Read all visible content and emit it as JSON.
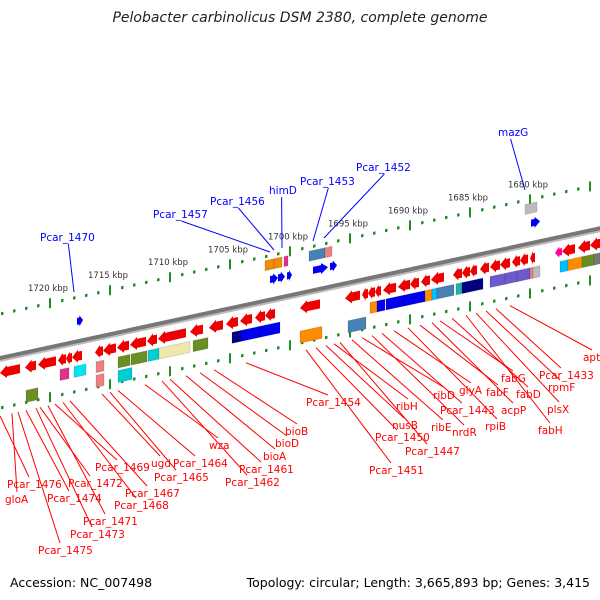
{
  "title": "Pelobacter carbinolicus DSM 2380, complete genome",
  "footer": {
    "accession": "Accession: NC_007498",
    "summary": "Topology: circular; Length: 3,665,893 bp; Genes: 3,415"
  },
  "colors": {
    "backbone": "#777777",
    "ticks": "#228b22",
    "forward_label": "#0000ff",
    "reverse_label": "#ff0000",
    "arrow_forward": "#0000ee",
    "arrow_reverse": "#ee0000"
  },
  "kbp_labels": [
    "1720 kbp",
    "1715 kbp",
    "1710 kbp",
    "1705 kbp",
    "1700 kbp",
    "1695 kbp",
    "1690 kbp",
    "1685 kbp",
    "1680 kbp"
  ],
  "forward_genes": [
    "Pcar_1470",
    "Pcar_1457",
    "Pcar_1456",
    "himD",
    "Pcar_1453",
    "Pcar_1452",
    "mazG"
  ],
  "reverse_genes": [
    "Pcar_1476",
    "gloA",
    "Pcar_1474",
    "Pcar_1472",
    "Pcar_1469",
    "Pcar_1467",
    "Pcar_1468",
    "Pcar_1471",
    "Pcar_1473",
    "Pcar_1475",
    "ugd",
    "Pcar_1464",
    "Pcar_1465",
    "wza",
    "Pcar_1461",
    "Pcar_1462",
    "bioA",
    "bioD",
    "bioB",
    "Pcar_1454",
    "Pcar_1451",
    "Pcar_1450",
    "nusB",
    "ribH",
    "Pcar_1447",
    "ribE",
    "ribD",
    "nrdR",
    "Pcar_1443",
    "glyA",
    "rpiB",
    "fabF",
    "acpP",
    "fabG",
    "fabD",
    "fabH",
    "plsX",
    "rpmF",
    "Pcar_1433",
    "apt"
  ]
}
